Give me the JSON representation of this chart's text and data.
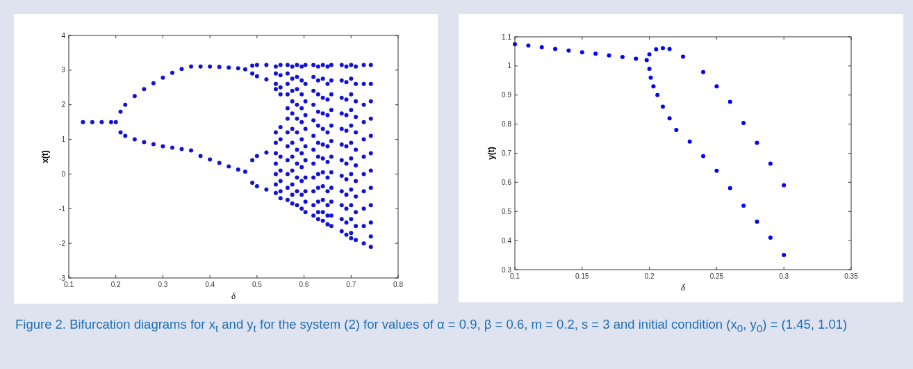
{
  "chart_data": [
    {
      "type": "scatter",
      "xlabel": "δ",
      "ylabel": "x(t)",
      "xlim": [
        0.1,
        0.8
      ],
      "ylim": [
        -3,
        4
      ],
      "xticks": [
        0.1,
        0.2,
        0.3,
        0.4,
        0.5,
        0.6,
        0.7,
        0.8
      ],
      "yticks": [
        -3,
        -2,
        -1,
        0,
        1,
        2,
        3,
        4
      ],
      "grid": false,
      "marker": "circle",
      "annotations": [
        "Figure 2. Bifurcation diagrams for x$_{t}$ and y$_{t}$ for the system (2) for values of α = 0.9, β = 0.6, m = 0.2, s = 3 and initial condition (x$_{0}$, y$_{0}$) = (1.45,  1.01)"
      ],
      "series": [
        {
          "color": "#1212d6",
          "x": [
            0.13,
            0.15,
            0.17,
            0.19,
            0.2,
            0.21,
            0.22,
            0.24,
            0.26,
            0.28,
            0.3,
            0.32,
            0.34,
            0.36,
            0.38,
            0.4,
            0.42,
            0.44,
            0.46,
            0.475,
            0.21,
            0.22,
            0.24,
            0.26,
            0.28,
            0.3,
            0.32,
            0.34,
            0.36,
            0.38,
            0.4,
            0.42,
            0.44,
            0.46,
            0.475,
            0.49,
            0.5,
            0.52,
            0.49,
            0.5,
            0.52,
            0.49,
            0.5,
            0.52,
            0.49,
            0.5,
            0.52
          ],
          "values": [
            1.5,
            1.5,
            1.5,
            1.5,
            1.5,
            1.8,
            2.0,
            2.25,
            2.45,
            2.62,
            2.78,
            2.92,
            3.03,
            3.1,
            3.1,
            3.1,
            3.09,
            3.07,
            3.05,
            3.02,
            1.2,
            1.1,
            1.0,
            0.92,
            0.86,
            0.8,
            0.76,
            0.72,
            0.68,
            0.52,
            0.42,
            0.32,
            0.22,
            0.13,
            0.07,
            3.13,
            3.15,
            3.15,
            2.9,
            2.82,
            2.73,
            0.4,
            0.52,
            0.62,
            -0.25,
            -0.35,
            -0.45
          ]
        },
        {
          "color": "#1212d6",
          "x": [
            0.54,
            0.54,
            0.54,
            0.54,
            0.54,
            0.54,
            0.54,
            0.54,
            0.54,
            0.54,
            0.54,
            0.55,
            0.55,
            0.55,
            0.55,
            0.55,
            0.55,
            0.55,
            0.55,
            0.55,
            0.55,
            0.55,
            0.565,
            0.565,
            0.565,
            0.565,
            0.565,
            0.565,
            0.565,
            0.565,
            0.565,
            0.565,
            0.565,
            0.565,
            0.575,
            0.575,
            0.575,
            0.575,
            0.575,
            0.575,
            0.575,
            0.575,
            0.575,
            0.575,
            0.575,
            0.575,
            0.585,
            0.585,
            0.585,
            0.585,
            0.585,
            0.585,
            0.585,
            0.585,
            0.585,
            0.585,
            0.585,
            0.595,
            0.595,
            0.595,
            0.595,
            0.595,
            0.595,
            0.595,
            0.595,
            0.595,
            0.595,
            0.595,
            0.603,
            0.603,
            0.603,
            0.603,
            0.603,
            0.603,
            0.603,
            0.603,
            0.603,
            0.603,
            0.603
          ],
          "values": [
            3.1,
            2.9,
            2.6,
            2.45,
            1.2,
            0.9,
            0.6,
            0.3,
            0.0,
            -0.3,
            -0.55,
            3.15,
            2.85,
            2.5,
            2.3,
            1.35,
            1.0,
            0.5,
            0.1,
            -0.2,
            -0.5,
            -0.7,
            3.15,
            2.9,
            2.6,
            2.3,
            1.9,
            1.6,
            1.2,
            0.8,
            0.4,
            0.0,
            -0.4,
            -0.75,
            3.1,
            2.75,
            2.4,
            2.1,
            1.75,
            1.3,
            0.9,
            0.5,
            0.1,
            -0.3,
            -0.6,
            -0.85,
            3.15,
            2.8,
            2.45,
            2.0,
            1.6,
            1.2,
            0.7,
            0.3,
            -0.1,
            -0.5,
            -0.9,
            3.1,
            2.7,
            2.3,
            1.9,
            1.5,
            1.0,
            0.6,
            0.2,
            -0.2,
            -0.6,
            -1.0,
            3.15,
            2.6,
            2.1,
            1.7,
            1.3,
            0.8,
            0.4,
            -0.1,
            -0.5,
            -0.8,
            -1.1
          ]
        },
        {
          "color": "#1212d6",
          "x": [
            0.62,
            0.62,
            0.62,
            0.62,
            0.62,
            0.62,
            0.62,
            0.62,
            0.62,
            0.62,
            0.62,
            0.62,
            0.63,
            0.63,
            0.63,
            0.63,
            0.63,
            0.63,
            0.63,
            0.63,
            0.63,
            0.63,
            0.63,
            0.63,
            0.64,
            0.64,
            0.64,
            0.64,
            0.64,
            0.64,
            0.64,
            0.64,
            0.64,
            0.64,
            0.64,
            0.64,
            0.65,
            0.65,
            0.65,
            0.65,
            0.65,
            0.65,
            0.65,
            0.65,
            0.65,
            0.65,
            0.65,
            0.65,
            0.658,
            0.658,
            0.658,
            0.658,
            0.658,
            0.658,
            0.658,
            0.658,
            0.658,
            0.658,
            0.658,
            0.658
          ],
          "values": [
            3.15,
            2.8,
            2.4,
            2.0,
            1.55,
            1.1,
            0.7,
            0.3,
            -0.1,
            -0.5,
            -0.9,
            -1.2,
            3.1,
            2.7,
            2.3,
            1.8,
            1.4,
            0.9,
            0.5,
            0.0,
            -0.4,
            -0.8,
            -1.1,
            -1.3,
            3.15,
            2.75,
            2.2,
            1.75,
            1.3,
            0.85,
            0.45,
            0.05,
            -0.35,
            -0.75,
            -1.1,
            -1.35,
            3.1,
            2.6,
            2.15,
            1.7,
            1.2,
            0.8,
            0.35,
            -0.1,
            -0.5,
            -0.9,
            -1.2,
            -1.45,
            3.15,
            2.7,
            2.3,
            1.85,
            1.4,
            0.95,
            0.5,
            0.05,
            -0.4,
            -0.8,
            -1.2,
            -1.5
          ]
        },
        {
          "color": "#1212d6",
          "x": [
            0.68,
            0.68,
            0.68,
            0.68,
            0.68,
            0.68,
            0.68,
            0.68,
            0.68,
            0.68,
            0.68,
            0.68,
            0.69,
            0.69,
            0.69,
            0.69,
            0.69,
            0.69,
            0.69,
            0.69,
            0.69,
            0.69,
            0.69,
            0.69,
            0.7,
            0.7,
            0.7,
            0.7,
            0.7,
            0.7,
            0.7,
            0.7,
            0.7,
            0.7,
            0.7,
            0.7,
            0.7,
            0.71,
            0.71,
            0.71,
            0.71,
            0.71,
            0.71,
            0.71,
            0.71,
            0.71,
            0.71,
            0.71,
            0.71,
            0.727,
            0.727,
            0.727,
            0.727,
            0.727,
            0.727,
            0.727,
            0.727,
            0.727,
            0.727,
            0.727,
            0.742,
            0.742,
            0.742,
            0.742,
            0.742,
            0.742,
            0.742,
            0.742,
            0.742,
            0.742,
            0.742,
            0.742
          ],
          "values": [
            3.15,
            2.7,
            2.2,
            1.75,
            1.3,
            0.85,
            0.4,
            -0.05,
            -0.5,
            -0.9,
            -1.3,
            -1.65,
            3.1,
            2.65,
            2.15,
            1.7,
            1.25,
            0.8,
            0.3,
            -0.15,
            -0.6,
            -1.0,
            -1.4,
            -1.75,
            3.15,
            2.75,
            2.3,
            1.85,
            1.4,
            0.9,
            0.45,
            0.0,
            -0.45,
            -0.9,
            -1.3,
            -1.7,
            -1.85,
            3.1,
            2.6,
            2.1,
            1.65,
            1.2,
            0.7,
            0.25,
            -0.2,
            -0.65,
            -1.1,
            -1.5,
            -1.9,
            3.15,
            2.6,
            2.0,
            1.5,
            1.0,
            0.5,
            0.0,
            -0.5,
            -1.0,
            -1.5,
            -2.0,
            3.15,
            2.6,
            2.1,
            1.6,
            1.1,
            0.6,
            0.1,
            -0.4,
            -0.9,
            -1.4,
            -1.8,
            -2.1
          ]
        }
      ]
    },
    {
      "type": "scatter",
      "xlabel": "δ",
      "ylabel": "y(t)",
      "xlim": [
        0.1,
        0.35
      ],
      "ylim": [
        0.3,
        1.1
      ],
      "xticks": [
        0.1,
        0.15,
        0.2,
        0.25,
        0.3,
        0.35
      ],
      "yticks": [
        0.3,
        0.4,
        0.5,
        0.6,
        0.7,
        0.8,
        0.9,
        1,
        1.1
      ],
      "grid": false,
      "marker": "circle",
      "series": [
        {
          "color": "#0000ff",
          "x": [
            0.1,
            0.11,
            0.12,
            0.13,
            0.14,
            0.15,
            0.16,
            0.17,
            0.18,
            0.19,
            0.198,
            0.2,
            0.205,
            0.21,
            0.215,
            0.225,
            0.24,
            0.25,
            0.26,
            0.27,
            0.28,
            0.29,
            0.3,
            0.2,
            0.201,
            0.203,
            0.206,
            0.21,
            0.215,
            0.22,
            0.23,
            0.24,
            0.25,
            0.26,
            0.27,
            0.28,
            0.29,
            0.3
          ],
          "values": [
            1.075,
            1.07,
            1.064,
            1.058,
            1.053,
            1.047,
            1.042,
            1.036,
            1.031,
            1.025,
            1.02,
            1.04,
            1.057,
            1.061,
            1.058,
            1.032,
            0.979,
            0.93,
            0.877,
            0.804,
            0.736,
            0.664,
            0.59,
            0.99,
            0.96,
            0.93,
            0.9,
            0.86,
            0.82,
            0.78,
            0.74,
            0.69,
            0.64,
            0.58,
            0.52,
            0.465,
            0.41,
            0.35
          ]
        }
      ]
    }
  ]
}
